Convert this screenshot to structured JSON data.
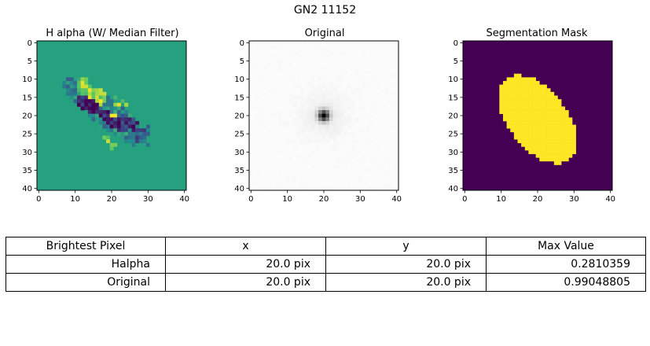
{
  "figure": {
    "title": "GN2 11152"
  },
  "chart_data": [
    {
      "type": "heatmap",
      "title": "H alpha (W/ Median Filter)",
      "colormap": "viridis",
      "xlim": [
        0,
        40
      ],
      "ylim": [
        40,
        0
      ],
      "xticks": [
        "0",
        "10",
        "20",
        "30",
        "40"
      ],
      "yticks": [
        "0",
        "5",
        "10",
        "15",
        "20",
        "25",
        "30",
        "35",
        "40"
      ],
      "background_color": "#26a17f",
      "blobs": [
        {
          "cx": 18.5,
          "cy": 19.0,
          "a": 15.0,
          "b": 4.2,
          "angle_deg": 38,
          "value": 0.45
        },
        {
          "cx": 14.5,
          "cy": 13.5,
          "a": 5.0,
          "b": 2.6,
          "angle_deg": 38,
          "value": 0.85
        },
        {
          "cx": 13.5,
          "cy": 17.0,
          "a": 4.0,
          "b": 1.8,
          "angle_deg": 38,
          "value": 0.05
        },
        {
          "cx": 20.5,
          "cy": 21.5,
          "a": 5.0,
          "b": 1.7,
          "angle_deg": 38,
          "value": 0.08
        },
        {
          "cx": 25.0,
          "cy": 22.0,
          "a": 3.5,
          "b": 1.6,
          "angle_deg": 30,
          "value": 0.15
        },
        {
          "cx": 28.5,
          "cy": 25.0,
          "a": 3.0,
          "b": 2.5,
          "angle_deg": 80,
          "value": 0.3
        },
        {
          "cx": 22.0,
          "cy": 16.0,
          "a": 2.5,
          "b": 1.5,
          "angle_deg": 38,
          "value": 0.78
        },
        {
          "cx": 19.5,
          "cy": 27.5,
          "a": 2.4,
          "b": 1.3,
          "angle_deg": 38,
          "value": 0.85
        },
        {
          "cx": 20.5,
          "cy": 20.0,
          "a": 1.3,
          "b": 1.0,
          "angle_deg": 0,
          "value": 0.99
        }
      ]
    },
    {
      "type": "heatmap",
      "title": "Original",
      "colormap": "Greys",
      "xlim": [
        0,
        40
      ],
      "ylim": [
        40,
        0
      ],
      "xticks": [
        "0",
        "10",
        "20",
        "30",
        "40"
      ],
      "yticks": [
        "0",
        "5",
        "10",
        "15",
        "20",
        "25",
        "30",
        "35",
        "40"
      ],
      "peak": {
        "x": 20,
        "y": 20,
        "value": 0.99048805
      }
    },
    {
      "type": "heatmap",
      "title": "Segmentation Mask",
      "colormap": "viridis",
      "xlim": [
        0,
        40
      ],
      "ylim": [
        40,
        0
      ],
      "xticks": [
        "0",
        "10",
        "20",
        "30",
        "40"
      ],
      "yticks": [
        "0",
        "5",
        "10",
        "15",
        "20",
        "25",
        "30",
        "35",
        "40"
      ],
      "mask_color": "#fde725",
      "background_color": "#440154",
      "mask": {
        "cx": 20.0,
        "cy": 21.0,
        "a": 14.0,
        "b": 8.0,
        "angle_deg": 52
      }
    }
  ],
  "table": {
    "headers": [
      "Brightest Pixel",
      "x",
      "y",
      "Max Value"
    ],
    "rows": [
      [
        "Halpha",
        "20.0 pix",
        "20.0 pix",
        "0.2810359"
      ],
      [
        "Original",
        "20.0 pix",
        "20.0 pix",
        "0.99048805"
      ]
    ]
  }
}
